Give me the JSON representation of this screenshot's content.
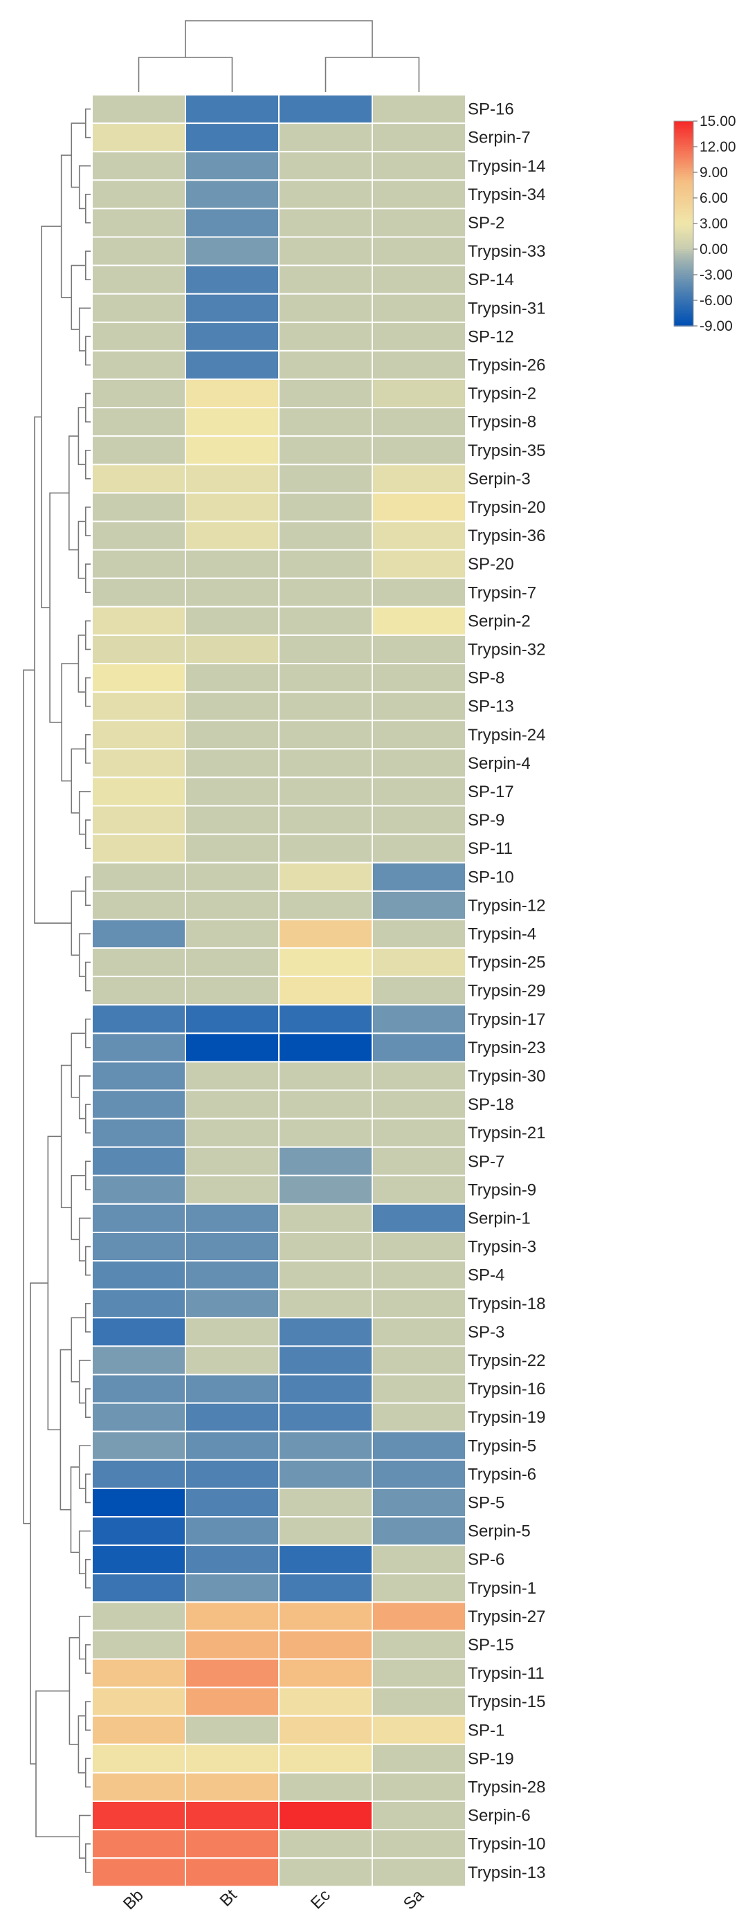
{
  "chart_data": {
    "type": "heatmap",
    "title": "",
    "columns": [
      "Bb",
      "Bt",
      "Ec",
      "Sa"
    ],
    "rows": [
      "SP-16",
      "Serpin-7",
      "Trypsin-14",
      "Trypsin-34",
      "SP-2",
      "Trypsin-33",
      "SP-14",
      "Trypsin-31",
      "SP-12",
      "Trypsin-26",
      "Trypsin-2",
      "Trypsin-8",
      "Trypsin-35",
      "Serpin-3",
      "Trypsin-20",
      "Trypsin-36",
      "SP-20",
      "Trypsin-7",
      "Serpin-2",
      "Trypsin-32",
      "SP-8",
      "SP-13",
      "Trypsin-24",
      "Serpin-4",
      "SP-17",
      "SP-9",
      "SP-11",
      "SP-10",
      "Trypsin-12",
      "Trypsin-4",
      "Trypsin-25",
      "Trypsin-29",
      "Trypsin-17",
      "Trypsin-23",
      "Trypsin-30",
      "SP-18",
      "Trypsin-21",
      "SP-7",
      "Trypsin-9",
      "Serpin-1",
      "Trypsin-3",
      "SP-4",
      "Trypsin-18",
      "SP-3",
      "Trypsin-22",
      "Trypsin-16",
      "Trypsin-19",
      "Trypsin-5",
      "Trypsin-6",
      "SP-5",
      "Serpin-5",
      "SP-6",
      "Trypsin-1",
      "Trypsin-27",
      "SP-15",
      "Trypsin-11",
      "Trypsin-15",
      "SP-1",
      "SP-19",
      "Trypsin-28",
      "Serpin-6",
      "Trypsin-10",
      "Trypsin-13"
    ],
    "values": [
      [
        0,
        -5.5,
        -5.5,
        0
      ],
      [
        2,
        -5.5,
        0,
        0
      ],
      [
        0,
        -3.5,
        0,
        0
      ],
      [
        0,
        -3.5,
        0,
        0
      ],
      [
        0,
        -4,
        0,
        0
      ],
      [
        0,
        -3,
        0,
        0
      ],
      [
        0,
        -5,
        0,
        0
      ],
      [
        0,
        -5,
        0,
        0
      ],
      [
        0,
        -5,
        0,
        0
      ],
      [
        0,
        -5,
        0,
        0
      ],
      [
        0,
        3.5,
        0,
        1
      ],
      [
        0,
        3,
        0,
        0
      ],
      [
        0,
        3,
        0,
        0
      ],
      [
        2,
        2,
        0,
        2
      ],
      [
        0,
        2,
        0,
        3.5
      ],
      [
        0,
        2,
        0,
        2
      ],
      [
        0,
        0,
        0,
        2
      ],
      [
        0,
        0,
        0,
        0
      ],
      [
        2,
        0,
        0,
        3
      ],
      [
        1.5,
        1.5,
        0,
        0
      ],
      [
        3,
        0,
        0,
        0
      ],
      [
        2,
        0,
        0,
        0
      ],
      [
        2,
        0,
        0,
        0
      ],
      [
        2,
        0,
        0,
        0
      ],
      [
        2.5,
        0,
        0,
        0
      ],
      [
        2,
        0,
        0,
        0
      ],
      [
        2,
        0,
        0,
        0
      ],
      [
        0,
        0,
        2,
        -4
      ],
      [
        0,
        0,
        0,
        -3
      ],
      [
        -4,
        0,
        6,
        0
      ],
      [
        0,
        0,
        3,
        2
      ],
      [
        0,
        0,
        3.5,
        0
      ],
      [
        -5.5,
        -6.5,
        -6.5,
        -3.5
      ],
      [
        -4,
        -9,
        -9,
        -4
      ],
      [
        -4,
        0,
        0,
        0
      ],
      [
        -4,
        0,
        0,
        0
      ],
      [
        -4,
        0,
        0,
        0
      ],
      [
        -4.5,
        0,
        -3,
        0
      ],
      [
        -3.5,
        0,
        -2.5,
        0
      ],
      [
        -4,
        -4,
        0,
        -5
      ],
      [
        -4,
        -4,
        0,
        0
      ],
      [
        -4.5,
        -4,
        0,
        0
      ],
      [
        -4.5,
        -3.5,
        0,
        0
      ],
      [
        -6,
        0,
        -5,
        0
      ],
      [
        -3,
        0,
        -5,
        0
      ],
      [
        -4,
        -4,
        -5,
        0
      ],
      [
        -3.5,
        -5,
        -5,
        0
      ],
      [
        -3,
        -4,
        -3.5,
        -4
      ],
      [
        -5,
        -5,
        -3.5,
        -4
      ],
      [
        -9,
        -5,
        0,
        -3.5
      ],
      [
        -7.5,
        -4,
        0,
        -3.5
      ],
      [
        -8,
        -5,
        -6.5,
        0
      ],
      [
        -6,
        -3.5,
        -5.5,
        0
      ],
      [
        0,
        8,
        8,
        9
      ],
      [
        0,
        8.5,
        8.5,
        0
      ],
      [
        7,
        10,
        8,
        0
      ],
      [
        5,
        9,
        4,
        0
      ],
      [
        7,
        0,
        5,
        4
      ],
      [
        3.5,
        3.5,
        3.5,
        0
      ],
      [
        7,
        7,
        0,
        0
      ],
      [
        14,
        14,
        15,
        0
      ],
      [
        11,
        11,
        0,
        0
      ],
      [
        11,
        11,
        0,
        0
      ]
    ],
    "color_scale": {
      "min": -9,
      "max": 15,
      "ticks": [
        "15.00",
        "12.00",
        "9.00",
        "6.00",
        "3.00",
        "0.00",
        "-3.00",
        "-6.00",
        "-9.00"
      ],
      "colors": {
        "low": "#0050b4",
        "neutral": "#c8cdb0",
        "warm": "#f0e6aa",
        "high": "#f52a2a"
      }
    },
    "dendrogram": "row and column hierarchical clustering",
    "xlabel": "",
    "ylabel": ""
  }
}
